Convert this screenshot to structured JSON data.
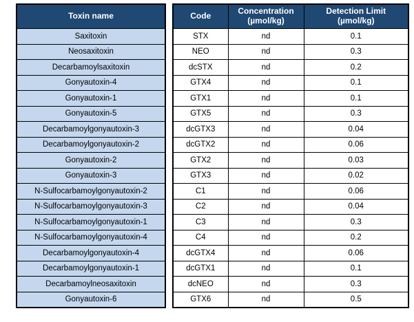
{
  "table": {
    "columns": [
      {
        "label": "Toxin name"
      },
      {
        "label": "Code"
      },
      {
        "label": "Concentration",
        "sub": "(µmol/kg)"
      },
      {
        "label": "Detection Limit",
        "sub": "(µmol/kg)"
      }
    ],
    "rows": [
      {
        "name": "Saxitoxin",
        "code": "STX",
        "concentration": "nd",
        "detection_limit": "0.1"
      },
      {
        "name": "Neosaxitoxin",
        "code": "NEO",
        "concentration": "nd",
        "detection_limit": "0.3"
      },
      {
        "name": "Decarbamoylsaxitoxin",
        "code": "dcSTX",
        "concentration": "nd",
        "detection_limit": "0.2"
      },
      {
        "name": "Gonyautoxin-4",
        "code": "GTX4",
        "concentration": "nd",
        "detection_limit": "0.1"
      },
      {
        "name": "Gonyautoxin-1",
        "code": "GTX1",
        "concentration": "nd",
        "detection_limit": "0.1"
      },
      {
        "name": "Gonyautoxin-5",
        "code": "GTX5",
        "concentration": "nd",
        "detection_limit": "0.3"
      },
      {
        "name": "Decarbamoylgonyautoxin-3",
        "code": "dcGTX3",
        "concentration": "nd",
        "detection_limit": "0.04"
      },
      {
        "name": "Decarbamoylgonyautoxin-2",
        "code": "dcGTX2",
        "concentration": "nd",
        "detection_limit": "0.06"
      },
      {
        "name": "Gonyautoxin-2",
        "code": "GTX2",
        "concentration": "nd",
        "detection_limit": "0.03"
      },
      {
        "name": "Gonyautoxin-3",
        "code": "GTX3",
        "concentration": "nd",
        "detection_limit": "0.02"
      },
      {
        "name": "N-Sulfocarbamoylgonyautoxin-2",
        "code": "C1",
        "concentration": "nd",
        "detection_limit": "0.06"
      },
      {
        "name": "N-Sulfocarbamoylgonyautoxin-3",
        "code": "C2",
        "concentration": "nd",
        "detection_limit": "0.04"
      },
      {
        "name": "N-Sulfocarbamoylgonyautoxin-1",
        "code": "C3",
        "concentration": "nd",
        "detection_limit": "0.3"
      },
      {
        "name": "N-Sulfocarbamoylgonyautoxin-4",
        "code": "C4",
        "concentration": "nd",
        "detection_limit": "0.2"
      },
      {
        "name": "Decarbamoylgonyautoxin-4",
        "code": "dcGTX4",
        "concentration": "nd",
        "detection_limit": "0.06"
      },
      {
        "name": "Decarbamoylgonyautoxin-1",
        "code": "dcGTX1",
        "concentration": "nd",
        "detection_limit": "0.1"
      },
      {
        "name": "Decarbamoylneosaxitoxin",
        "code": "dcNEO",
        "concentration": "nd",
        "detection_limit": "0.3"
      },
      {
        "name": "Gonyautoxin-6",
        "code": "GTX6",
        "concentration": "nd",
        "detection_limit": "0.5"
      }
    ]
  },
  "colors": {
    "header_bg": "#1F4873",
    "header_text": "#FFFFFF",
    "row_bg": "#C4D7EE",
    "border": "#000000"
  }
}
